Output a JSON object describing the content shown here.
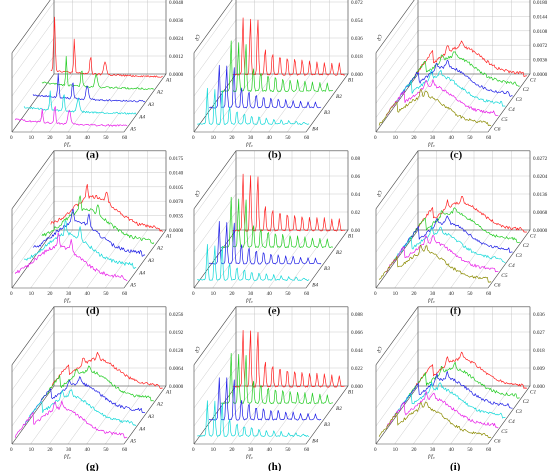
{
  "colors": [
    "#ff2020",
    "#22cc22",
    "#1e1ee6",
    "#11d8d8",
    "#e81ee8",
    "#8b8b00"
  ],
  "chart_data": [
    {
      "label": "(a)",
      "type": "line",
      "xlabel": "f/f₀",
      "ylabel": "Cp",
      "xticks": [
        "0",
        "10",
        "20",
        "30",
        "40",
        "50",
        "60"
      ],
      "zticks": [
        "0.0000",
        "0.0012",
        "0.0024",
        "0.0036",
        "0.0048"
      ],
      "rows": [
        "A1",
        "A2",
        "A3",
        "A4",
        "A5"
      ],
      "shape": "spiky-low"
    },
    {
      "label": "(b)",
      "type": "line",
      "xlabel": "f/f₀",
      "ylabel": "Cp",
      "xticks": [
        "0",
        "10",
        "20",
        "30",
        "40",
        "50",
        "60"
      ],
      "zticks": [
        "0.000",
        "0.018",
        "0.036",
        "0.054",
        "0.072"
      ],
      "rows": [
        "B1",
        "B2",
        "B3",
        "B4"
      ],
      "shape": "harmonic"
    },
    {
      "label": "(c)",
      "type": "line",
      "xlabel": "f/f₀",
      "ylabel": "Cp",
      "xticks": [
        "0",
        "10",
        "20",
        "30",
        "40",
        "50",
        "60"
      ],
      "zticks": [
        "0.0000",
        "0.0036",
        "0.0072",
        "0.0108",
        "0.0144",
        "0.0180"
      ],
      "rows": [
        "C1",
        "C2",
        "C3",
        "C4",
        "C5",
        "C6"
      ],
      "shape": "broad"
    },
    {
      "label": "(d)",
      "type": "line",
      "xlabel": "f/f₀",
      "ylabel": "Cp",
      "xticks": [
        "0",
        "10",
        "20",
        "30",
        "40",
        "50",
        "60"
      ],
      "zticks": [
        "0.0000",
        "0.0035",
        "0.0070",
        "0.0105",
        "0.0140",
        "0.0175"
      ],
      "rows": [
        "A1",
        "A2",
        "A3",
        "A4",
        "A5"
      ],
      "shape": "broad-spiky"
    },
    {
      "label": "(e)",
      "type": "line",
      "xlabel": "f/f₀",
      "ylabel": "Cp",
      "xticks": [
        "0",
        "10",
        "20",
        "30",
        "40",
        "50",
        "60"
      ],
      "zticks": [
        "0.00",
        "0.02",
        "0.04",
        "0.06",
        "0.08"
      ],
      "rows": [
        "B1",
        "B2",
        "B3",
        "B4"
      ],
      "shape": "harmonic"
    },
    {
      "label": "(f)",
      "type": "line",
      "xlabel": "f/f₀",
      "ylabel": "Cp",
      "xticks": [
        "0",
        "10",
        "20",
        "30",
        "40",
        "50",
        "60"
      ],
      "zticks": [
        "0.0000",
        "0.0068",
        "0.0136",
        "0.0204",
        "0.0272"
      ],
      "rows": [
        "C1",
        "C2",
        "C3",
        "C4",
        "C5",
        "C6"
      ],
      "shape": "broad"
    },
    {
      "label": "(g)",
      "type": "line",
      "xlabel": "f/f₀",
      "ylabel": "Cp",
      "xticks": [
        "0",
        "10",
        "20",
        "30",
        "40",
        "50",
        "60"
      ],
      "zticks": [
        "0.0000",
        "0.0064",
        "0.0128",
        "0.0192",
        "0.0256"
      ],
      "rows": [
        "A1",
        "A2",
        "A3",
        "A4",
        "A5"
      ],
      "shape": "broad"
    },
    {
      "label": "(h)",
      "type": "line",
      "xlabel": "f/f₀",
      "ylabel": "Cp",
      "xticks": [
        "0",
        "10",
        "20",
        "30",
        "40",
        "50",
        "60"
      ],
      "zticks": [
        "0.000",
        "0.022",
        "0.044",
        "0.066",
        "0.088"
      ],
      "rows": [
        "B1",
        "B2",
        "B3",
        "B4"
      ],
      "shape": "harmonic"
    },
    {
      "label": "(i)",
      "type": "line",
      "xlabel": "f/f₀",
      "ylabel": "Cp",
      "xticks": [
        "0",
        "10",
        "20",
        "30",
        "40",
        "50",
        "60"
      ],
      "zticks": [
        "0.000",
        "0.009",
        "0.018",
        "0.027",
        "0.036"
      ],
      "rows": [
        "C1",
        "C2",
        "C3",
        "C4",
        "C5",
        "C6"
      ],
      "shape": "broad"
    }
  ]
}
